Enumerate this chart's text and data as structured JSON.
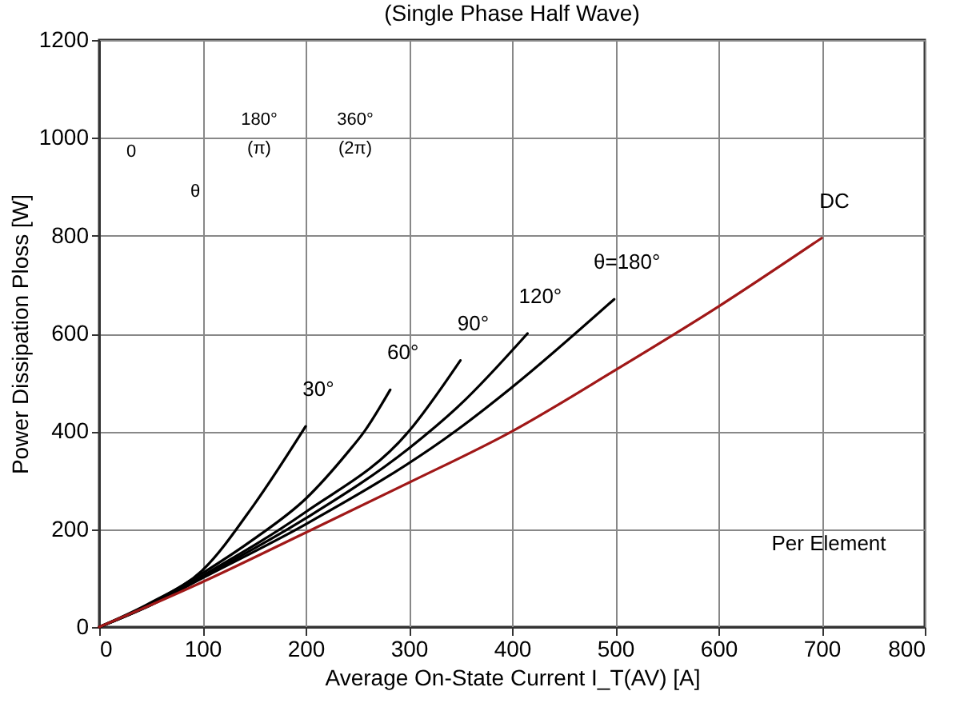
{
  "chart_data": {
    "type": "line",
    "title": "(Single Phase Half Wave)",
    "xlabel": "Average On-State Current I_T(AV) [A]",
    "ylabel": "Power Dissipation Ploss   [W]",
    "xlim": [
      0,
      800
    ],
    "ylim": [
      0,
      1200
    ],
    "xticks": [
      0,
      100,
      200,
      300,
      400,
      500,
      600,
      700,
      800
    ],
    "yticks": [
      0,
      200,
      400,
      600,
      800,
      1000,
      1200
    ],
    "grid": true,
    "marker": "none",
    "line_style": "solid",
    "series": [
      {
        "name": "30°",
        "color": "#000000",
        "x": [
          0,
          50,
          100,
          150,
          200
        ],
        "values": [
          0,
          50,
          116,
          250,
          410
        ]
      },
      {
        "name": "60°",
        "color": "#000000",
        "x": [
          0,
          50,
          100,
          150,
          200,
          240,
          257,
          282
        ],
        "values": [
          0,
          48,
          110,
          180,
          262,
          355,
          400,
          485
        ]
      },
      {
        "name": "90°",
        "color": "#000000",
        "x": [
          0,
          50,
          100,
          200,
          300,
          350
        ],
        "values": [
          0,
          46,
          105,
          235,
          400,
          545
        ]
      },
      {
        "name": "120°",
        "color": "#000000",
        "x": [
          0,
          50,
          100,
          200,
          300,
          350,
          415
        ],
        "values": [
          0,
          45,
          102,
          222,
          365,
          455,
          600
        ]
      },
      {
        "name": "θ=180°",
        "color": "#000000",
        "x": [
          0,
          50,
          100,
          200,
          345,
          400,
          499
        ],
        "values": [
          0,
          45,
          100,
          210,
          400,
          490,
          670
        ]
      },
      {
        "name": "DC",
        "color": "#a01818",
        "x": [
          0,
          50,
          100,
          200,
          300,
          400,
          500,
          600,
          700
        ],
        "values": [
          0,
          45,
          92,
          193,
          295,
          400,
          525,
          655,
          795
        ]
      }
    ],
    "annotations": [
      "Per Element",
      "0",
      "180°",
      "(π)",
      "360°",
      "(2π)",
      "θ"
    ]
  }
}
